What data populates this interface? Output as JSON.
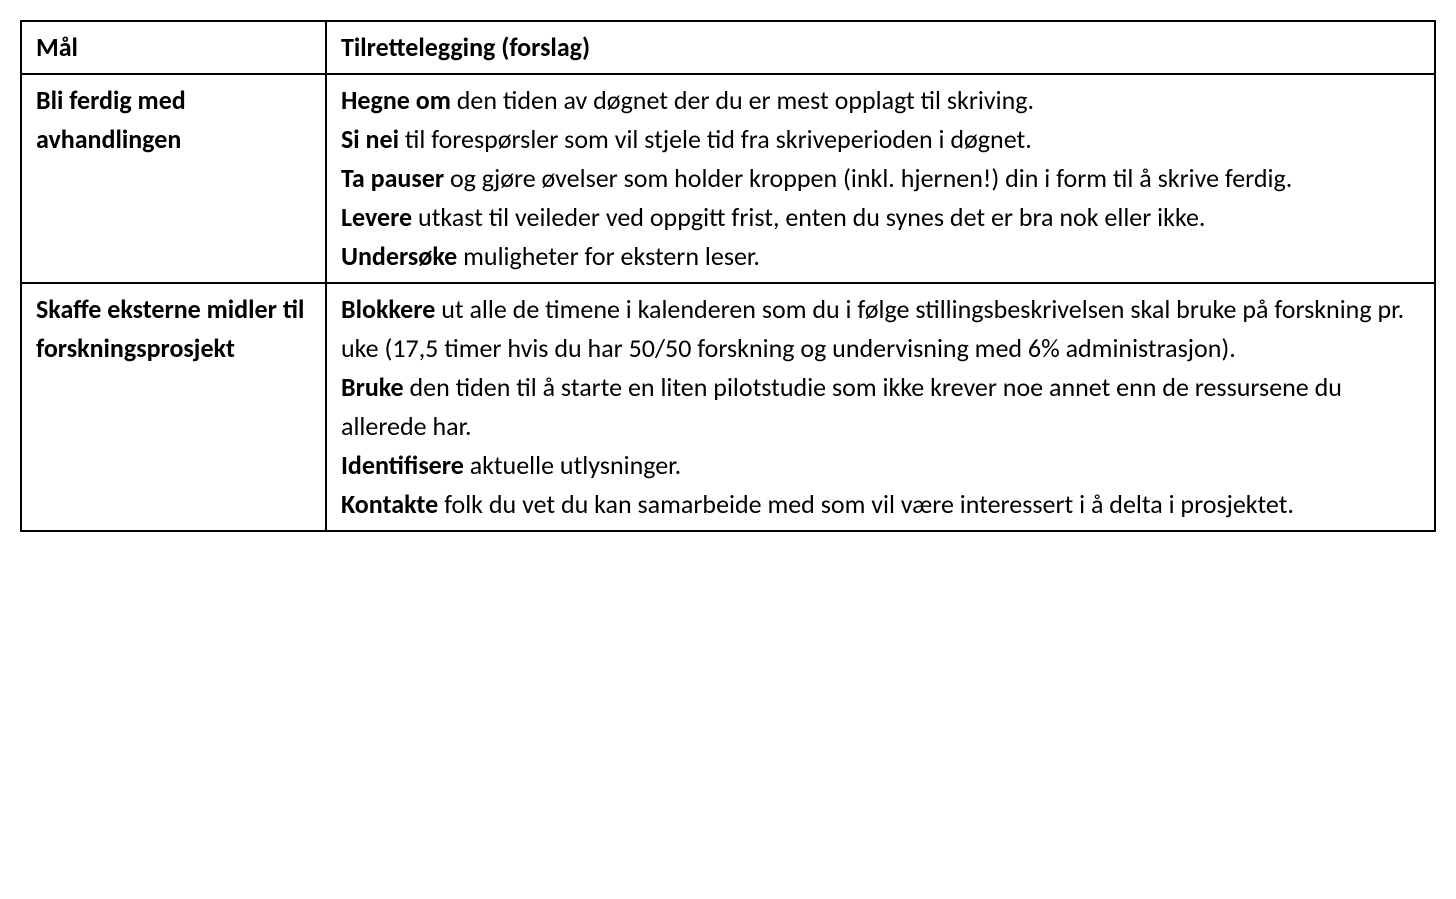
{
  "table": {
    "columns": [
      "Mål",
      "Tilrettelegging (forslag)"
    ],
    "column_widths": [
      "305px",
      "auto"
    ],
    "border_color": "#000000",
    "border_width": 2,
    "background_color": "#ffffff",
    "text_color": "#000000",
    "font_size": 26,
    "rows": [
      {
        "goal": "Bli ferdig med avhandlingen",
        "items": [
          {
            "lead": "Hegne om",
            "rest": " den tiden av døgnet der du er mest opplagt til skriving."
          },
          {
            "lead": "Si nei",
            "rest": " til forespørsler som vil stjele tid fra skriveperioden i døgnet."
          },
          {
            "lead": "Ta pauser",
            "rest": " og gjøre øvelser som holder kroppen (inkl. hjernen!) din i form til å skrive ferdig."
          },
          {
            "lead": "Levere",
            "rest": " utkast til veileder ved oppgitt frist, enten du synes det er bra nok eller ikke."
          },
          {
            "lead": "Undersøke",
            "rest": " muligheter for ekstern leser."
          }
        ]
      },
      {
        "goal": "Skaffe eksterne midler til forskningsprosjekt",
        "items": [
          {
            "lead": "Blokkere",
            "rest": " ut alle de timene i kalenderen som du i følge stillingsbeskrivelsen skal bruke på forskning pr. uke (17,5 timer hvis du har 50/50 forskning og undervisning med 6% administrasjon)."
          },
          {
            "lead": "Bruke",
            "rest": " den tiden til å starte en liten pilotstudie som ikke krever noe annet enn de ressursene du allerede har."
          },
          {
            "lead": "Identifisere",
            "rest": " aktuelle utlysninger."
          },
          {
            "lead": "Kontakte",
            "rest": " folk du vet du kan samarbeide med som vil være interessert i å delta i prosjektet."
          }
        ]
      }
    ]
  }
}
